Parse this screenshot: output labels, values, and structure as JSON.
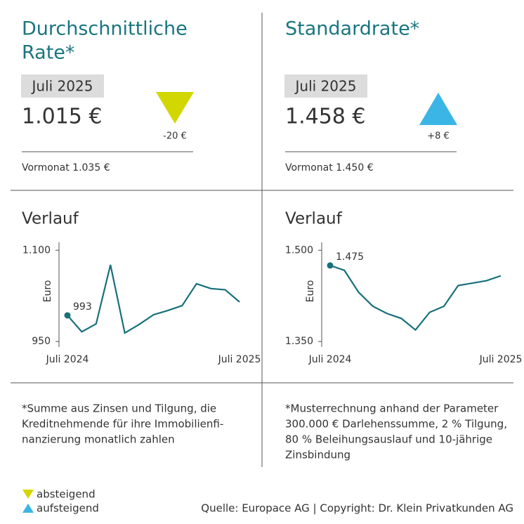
{
  "panels": [
    {
      "title_lines": [
        "Durchschnittliche",
        "Rate*"
      ],
      "badge": "Juli 2025",
      "value": "1.015 €",
      "change": "-20 €",
      "previous": "Vormonat 1.035 €",
      "footnote_lines": [
        "*Summe aus Zinsen und Tilgung, die",
        "Kreditnehmende für ihre Immobilienfi-",
        "nanzierung monatlich zahlen"
      ]
    },
    {
      "title_lines": [
        "Standardrate*"
      ],
      "badge": "Juli 2025",
      "value": "1.458 €",
      "change": "+8 €",
      "previous": "Vormonat 1.450 €",
      "footnote_lines": [
        "*Musterrechnung anhand der Parameter",
        "300.000 € Darlehenssumme, 2 % Tilgung,",
        "80 % Beleihungsauslauf und 10-jährige",
        "Zinsbindung"
      ]
    }
  ],
  "chart_data": [
    {
      "type": "line",
      "title": "Verlauf",
      "y_label": "Euro",
      "color": "#17707a",
      "categories": [
        "Juli 2024",
        null,
        null,
        null,
        null,
        null,
        null,
        null,
        null,
        null,
        null,
        null,
        "Juli 2025"
      ],
      "values": [
        993,
        966,
        979,
        1076,
        964,
        978,
        994,
        1001,
        1009,
        1045,
        1037,
        1035,
        1015
      ],
      "value_labels": [
        "993",
        null,
        null,
        null,
        null,
        null,
        null,
        null,
        null,
        null,
        null,
        null,
        null
      ],
      "ylim": [
        941,
        1113
      ],
      "yticks": [
        {
          "value": 950,
          "label": "950"
        },
        {
          "value": 1100,
          "label": "1.100"
        }
      ]
    },
    {
      "type": "line",
      "title": "Verlauf",
      "y_label": "Euro",
      "color": "#17707a",
      "categories": [
        "Juli 2024",
        null,
        null,
        null,
        null,
        null,
        null,
        null,
        null,
        null,
        null,
        null,
        "Juli 2025"
      ],
      "values": [
        1475,
        1467,
        1431,
        1408,
        1396,
        1388,
        1369,
        1398,
        1408,
        1442,
        1446,
        1450,
        1458
      ],
      "value_labels": [
        "1.475",
        null,
        null,
        null,
        null,
        null,
        null,
        null,
        null,
        null,
        null,
        null,
        null
      ],
      "ylim": [
        1341,
        1513
      ],
      "yticks": [
        {
          "value": 1350,
          "label": "1.350"
        },
        {
          "value": 1500,
          "label": "1.500"
        }
      ]
    }
  ],
  "legend": [
    "absteigend",
    "aufsteigend"
  ],
  "source": "Quelle: Europace AG | Copyright: Dr. Klein Privatkunden AG"
}
